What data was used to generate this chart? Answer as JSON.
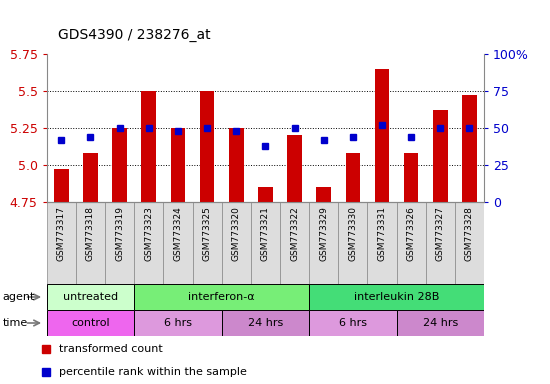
{
  "title": "GDS4390 / 238276_at",
  "samples": [
    "GSM773317",
    "GSM773318",
    "GSM773319",
    "GSM773323",
    "GSM773324",
    "GSM773325",
    "GSM773320",
    "GSM773321",
    "GSM773322",
    "GSM773329",
    "GSM773330",
    "GSM773331",
    "GSM773326",
    "GSM773327",
    "GSM773328"
  ],
  "transformed_count": [
    4.97,
    5.08,
    5.25,
    5.5,
    5.25,
    5.5,
    5.25,
    4.85,
    5.2,
    4.85,
    5.08,
    5.65,
    5.08,
    5.37,
    5.47
  ],
  "percentile_rank": [
    42,
    44,
    50,
    50,
    48,
    50,
    48,
    38,
    50,
    42,
    44,
    52,
    44,
    50,
    50
  ],
  "ylim": [
    4.75,
    5.75
  ],
  "yticks_left": [
    4.75,
    5.0,
    5.25,
    5.5,
    5.75
  ],
  "yticks_right": [
    0,
    25,
    50,
    75,
    100
  ],
  "bar_color": "#CC0000",
  "dot_color": "#0000CC",
  "agent_groups": [
    {
      "label": "untreated",
      "start": 0,
      "end": 3,
      "color": "#CCFFCC"
    },
    {
      "label": "interferon-α",
      "start": 3,
      "end": 9,
      "color": "#77EE77"
    },
    {
      "label": "interleukin 28B",
      "start": 9,
      "end": 15,
      "color": "#44DD77"
    }
  ],
  "time_groups": [
    {
      "label": "control",
      "start": 0,
      "end": 3,
      "color": "#EE66EE"
    },
    {
      "label": "6 hrs",
      "start": 3,
      "end": 6,
      "color": "#DD99DD"
    },
    {
      "label": "24 hrs",
      "start": 6,
      "end": 9,
      "color": "#CC88CC"
    },
    {
      "label": "6 hrs",
      "start": 9,
      "end": 12,
      "color": "#DD99DD"
    },
    {
      "label": "24 hrs",
      "start": 12,
      "end": 15,
      "color": "#CC88CC"
    }
  ],
  "legend_items": [
    {
      "label": "transformed count",
      "color": "#CC0000"
    },
    {
      "label": "percentile rank within the sample",
      "color": "#0000CC"
    }
  ],
  "gridlines": [
    5.0,
    5.25,
    5.5
  ],
  "bar_width": 0.5,
  "xtick_bg": "#CCCCCC"
}
